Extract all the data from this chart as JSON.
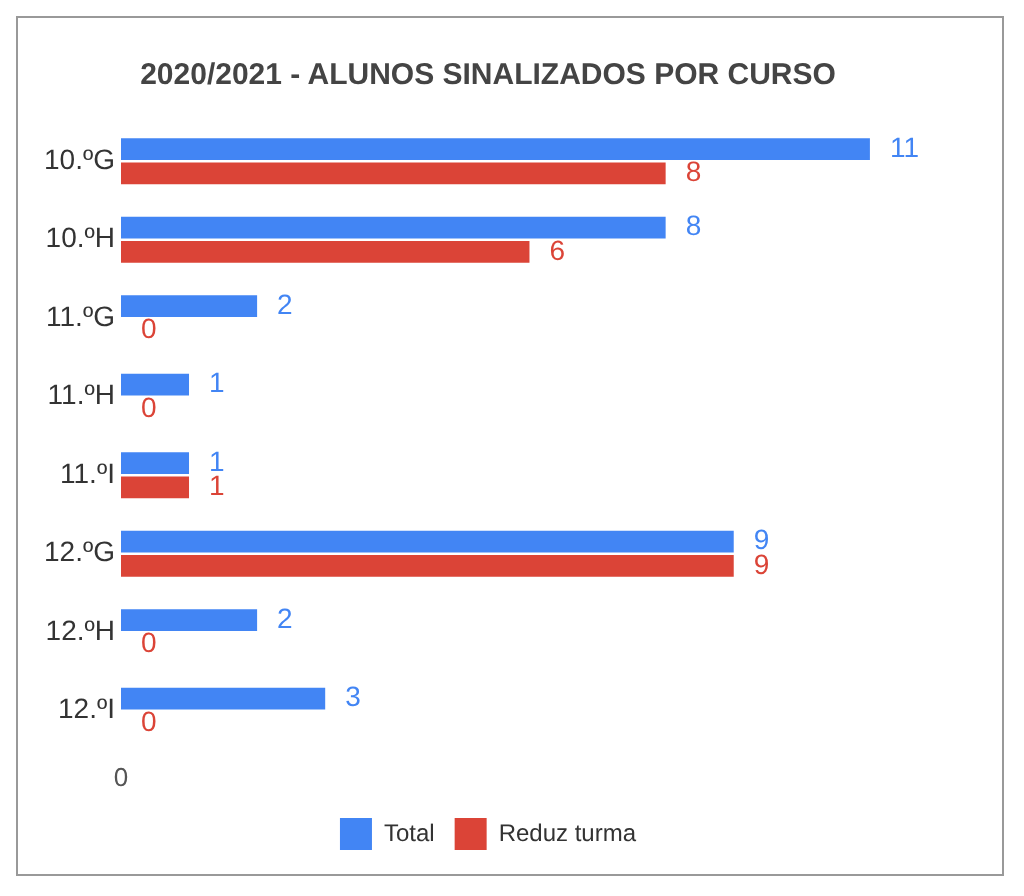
{
  "chart_data": {
    "type": "bar",
    "orientation": "horizontal",
    "title": "2020/2021 - ALUNOS SINALIZADOS POR CURSO",
    "categories": [
      "10.ºG",
      "10.ºH",
      "11.ºG",
      "11.ºH",
      "11.ºI",
      "12.ºG",
      "12.ºH",
      "12.ºI"
    ],
    "series": [
      {
        "name": "Total",
        "color": "#4285f4",
        "values": [
          11,
          8,
          2,
          1,
          1,
          9,
          2,
          3
        ]
      },
      {
        "name": "Reduz turma",
        "color": "#db4437",
        "values": [
          8,
          6,
          0,
          0,
          1,
          9,
          0,
          0
        ]
      }
    ],
    "annotations": [
      "0"
    ],
    "grid": false,
    "legend": "bottom",
    "data_labels": true
  }
}
